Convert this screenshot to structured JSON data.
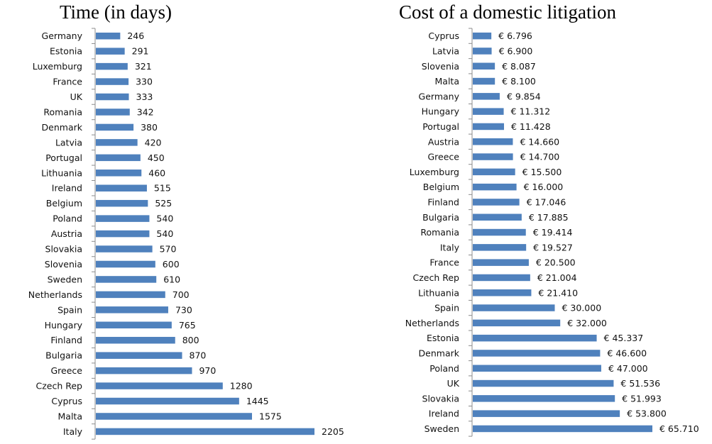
{
  "chart_data": [
    {
      "type": "bar",
      "orientation": "horizontal",
      "title": "Time (in days)",
      "xlabel": "",
      "ylabel": "",
      "grid": false,
      "legend": "none",
      "bar_color": "#4f81bd",
      "value_prefix": "",
      "categories": [
        "Germany",
        "Estonia",
        "Luxemburg",
        "France",
        "UK",
        "Romania",
        "Denmark",
        "Latvia",
        "Portugal",
        "Lithuania",
        "Ireland",
        "Belgium",
        "Poland",
        "Austria",
        "Slovakia",
        "Slovenia",
        "Sweden",
        "Netherlands",
        "Spain",
        "Hungary",
        "Finland",
        "Bulgaria",
        "Greece",
        "Czech Rep",
        "Cyprus",
        "Malta",
        "Italy"
      ],
      "values": [
        246,
        291,
        321,
        330,
        333,
        342,
        380,
        420,
        450,
        460,
        515,
        525,
        540,
        540,
        570,
        600,
        610,
        700,
        730,
        765,
        800,
        870,
        970,
        1280,
        1445,
        1575,
        2205
      ],
      "value_labels": [
        "246",
        "291",
        "321",
        "330",
        "333",
        "342",
        "380",
        "420",
        "450",
        "460",
        "515",
        "525",
        "540",
        "540",
        "570",
        "600",
        "610",
        "700",
        "730",
        "765",
        "800",
        "870",
        "970",
        "1280",
        "1445",
        "1575",
        "2205"
      ],
      "xlim": [
        0,
        2205
      ]
    },
    {
      "type": "bar",
      "orientation": "horizontal",
      "title": "Cost of a domestic litigation",
      "xlabel": "",
      "ylabel": "",
      "grid": false,
      "legend": "none",
      "bar_color": "#4f81bd",
      "value_prefix": "€",
      "categories": [
        "Cyprus",
        "Latvia",
        "Slovenia",
        "Malta",
        "Germany",
        "Hungary",
        "Portugal",
        "Austria",
        "Greece",
        "Luxemburg",
        "Belgium",
        "Finland",
        "Bulgaria",
        "Romania",
        "Italy",
        "France",
        "Czech Rep",
        "Lithuania",
        "Spain",
        "Netherlands",
        "Estonia",
        "Denmark",
        "Poland",
        "UK",
        "Slovakia",
        "Ireland",
        "Sweden"
      ],
      "values": [
        6796,
        6900,
        8087,
        8100,
        9854,
        11312,
        11428,
        14660,
        14700,
        15500,
        16000,
        17046,
        17885,
        19414,
        19527,
        20500,
        21004,
        21410,
        30000,
        32000,
        45337,
        46600,
        47000,
        51536,
        51993,
        53800,
        65710
      ],
      "value_labels": [
        "€ 6.796",
        "€ 6.900",
        "€ 8.087",
        "€ 8.100",
        "€ 9.854",
        "€ 11.312",
        "€ 11.428",
        "€ 14.660",
        "€ 14.700",
        "€ 15.500",
        "€ 16.000",
        "€ 17.046",
        "€ 17.885",
        "€ 19.414",
        "€ 19.527",
        "€ 20.500",
        "€ 21.004",
        "€ 21.410",
        "€ 30.000",
        "€ 32.000",
        "€ 45.337",
        "€ 46.600",
        "€ 47.000",
        "€ 51.536",
        "€ 51.993",
        "€ 53.800",
        "€ 65.710"
      ],
      "xlim": [
        0,
        65710
      ]
    }
  ]
}
